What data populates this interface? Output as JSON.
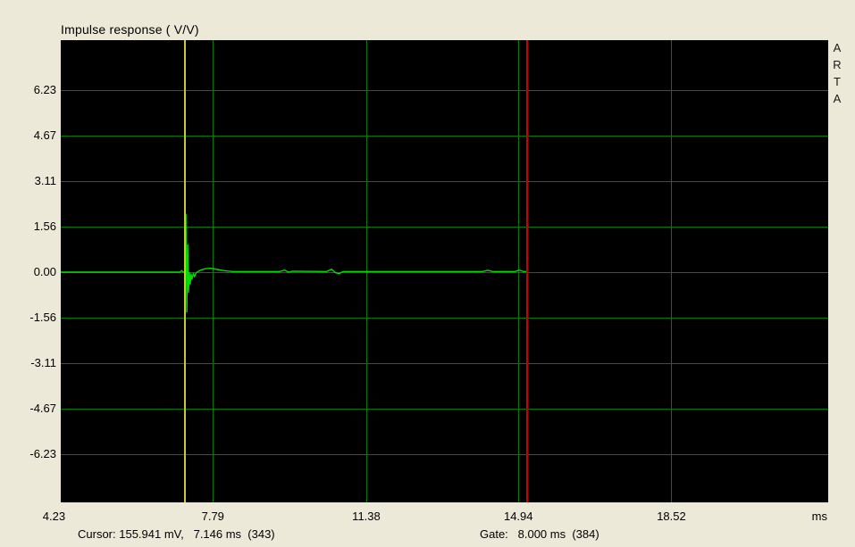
{
  "title": "Impulse response ( V/V)",
  "watermark": "ARTA",
  "status": {
    "cursor": "Cursor: 155.941 mV,   7.146 ms  (343)",
    "gate": "Gate:   8.000 ms  (384)"
  },
  "colors": {
    "background": "#ECE9D8",
    "plot_background": "#000000",
    "grid": "#007A00",
    "trace": "#00DC00",
    "cursor_line": "#C8C832",
    "gate_line": "#CC0000",
    "text": "#000000"
  },
  "chart_data": {
    "type": "line",
    "title": "Impulse response ( V/V)",
    "xlabel": "ms",
    "ylabel": "V/V",
    "grid": true,
    "legend": false,
    "xlim": [
      4.23,
      22.19
    ],
    "ylim": [
      -7.89,
      7.95
    ],
    "x_ticks": [
      {
        "label": "4.23",
        "value": 4.23
      },
      {
        "label": "7.79",
        "value": 7.79
      },
      {
        "label": "11.38",
        "value": 11.38
      },
      {
        "label": "14.94",
        "value": 14.94
      },
      {
        "label": "18.52",
        "value": 18.52
      }
    ],
    "y_ticks": [
      {
        "label": "6.23",
        "value": 6.23
      },
      {
        "label": "4.67",
        "value": 4.67
      },
      {
        "label": "3.11",
        "value": 3.11
      },
      {
        "label": "1.56",
        "value": 1.56
      },
      {
        "label": "0.00",
        "value": 0.0
      },
      {
        "label": "-1.56",
        "value": -1.56
      },
      {
        "label": "-3.11",
        "value": -3.11
      },
      {
        "label": "-4.67",
        "value": -4.67
      },
      {
        "label": "-6.23",
        "value": -6.23
      }
    ],
    "cursor": {
      "ms": 7.146,
      "level_mv": "155.941",
      "sample": 343
    },
    "gate": {
      "length_ms": "8.000",
      "position_ms": 15.146,
      "sample": 384
    },
    "series": [
      {
        "name": "impulse-response",
        "points": [
          [
            4.23,
            0.0
          ],
          [
            7.02,
            0.0
          ],
          [
            7.06,
            0.05
          ],
          [
            7.1,
            0.0
          ],
          [
            7.14,
            0.02
          ],
          [
            7.15,
            0.1
          ],
          [
            7.16,
            2.0
          ],
          [
            7.18,
            -1.38
          ],
          [
            7.2,
            0.95
          ],
          [
            7.22,
            -0.7
          ],
          [
            7.24,
            0.0
          ],
          [
            7.26,
            -0.42
          ],
          [
            7.28,
            -0.05
          ],
          [
            7.3,
            -0.25
          ],
          [
            7.33,
            -0.06
          ],
          [
            7.36,
            -0.15
          ],
          [
            7.4,
            -0.02
          ],
          [
            7.5,
            0.07
          ],
          [
            7.62,
            0.12
          ],
          [
            7.75,
            0.13
          ],
          [
            7.9,
            0.09
          ],
          [
            8.05,
            0.05
          ],
          [
            8.25,
            0.02
          ],
          [
            9.35,
            0.02
          ],
          [
            9.47,
            0.07
          ],
          [
            9.56,
            0.0
          ],
          [
            9.65,
            0.03
          ],
          [
            10.45,
            0.02
          ],
          [
            10.57,
            0.1
          ],
          [
            10.66,
            -0.02
          ],
          [
            10.74,
            -0.05
          ],
          [
            10.84,
            0.02
          ],
          [
            14.1,
            0.02
          ],
          [
            14.22,
            0.06
          ],
          [
            14.34,
            0.02
          ],
          [
            14.86,
            0.02
          ],
          [
            14.96,
            0.07
          ],
          [
            15.06,
            0.02
          ],
          [
            15.146,
            0.02
          ]
        ]
      }
    ]
  }
}
